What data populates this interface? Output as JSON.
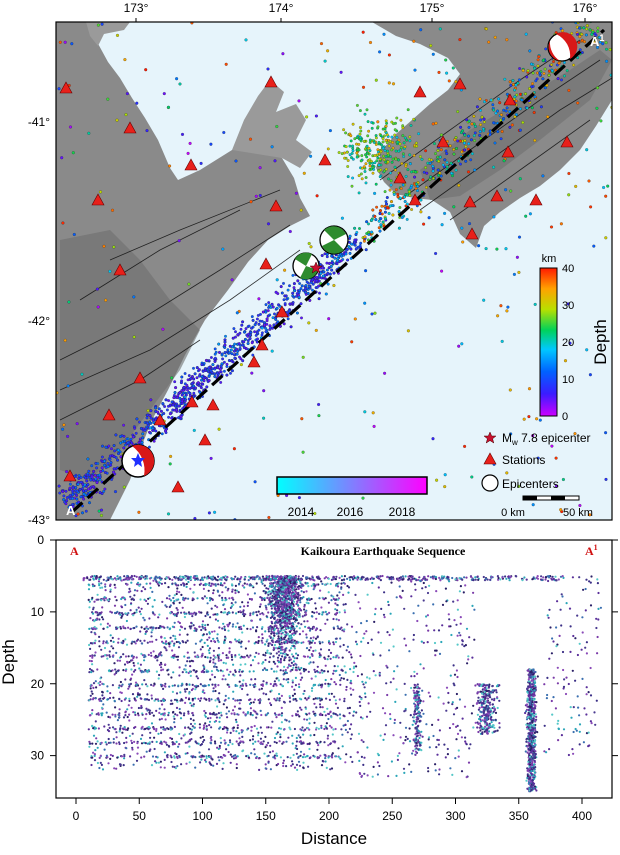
{
  "map": {
    "lon_ticks": [
      "173°",
      "174°",
      "175°",
      "176°"
    ],
    "lat_ticks": [
      "-41°",
      "-42°",
      "-43°"
    ],
    "section_label_start": "A",
    "section_label_end": "A",
    "section_label_end_sup": "1",
    "depth_colorbar": {
      "unit": "km",
      "title": "Depth",
      "ticks": [
        "40",
        "30",
        "20",
        "10",
        "0"
      ],
      "range": [
        0,
        40
      ]
    },
    "legend": {
      "epicenter_label": "M",
      "epicenter_sub": "w",
      "epicenter_rest": " 7.8 epicenter",
      "stations_label": "Stations",
      "epicenters_label": "Epicenters"
    },
    "time_colorbar": {
      "ticks": [
        "2014",
        "2016",
        "2018"
      ],
      "colors": [
        "#00ffff",
        "#ff00ff"
      ]
    },
    "scalebar": {
      "left_label": "0 km",
      "right_label": "50 km"
    },
    "colors": {
      "water": "#e6f4fb",
      "land": "#8c8c8c",
      "station": "#e8201a",
      "profile_line": "#000000"
    }
  },
  "section": {
    "title": "Kaikoura Earthquake Sequence",
    "label_start": "A",
    "label_end": "A",
    "label_end_sup": "1",
    "xlabel": "Distance",
    "ylabel": "Depth",
    "x_ticks": [
      "0",
      "50",
      "100",
      "150",
      "200",
      "250",
      "300",
      "350",
      "400"
    ],
    "y_ticks": [
      "0",
      "10",
      "20",
      "30"
    ],
    "xlim": [
      0,
      420
    ],
    "ylim": [
      0,
      36
    ]
  },
  "chart_data": {
    "type": "scatter",
    "xlabel": "Distance",
    "ylabel": "Depth",
    "title": "Kaikoura Earthquake Sequence",
    "xlim": [
      0,
      420
    ],
    "ylim": [
      36,
      0
    ],
    "x_ticks": [
      0,
      50,
      100,
      150,
      200,
      250,
      300,
      350,
      400
    ],
    "y_ticks": [
      0,
      10,
      20,
      30
    ],
    "series": [
      {
        "x": [
          5,
          10,
          20,
          30,
          45,
          60,
          80,
          95,
          110,
          130,
          150,
          165,
          175,
          180,
          185,
          190,
          195,
          200,
          205,
          215,
          230,
          250,
          270,
          290,
          310,
          320,
          330,
          340,
          350,
          355,
          360,
          362,
          365,
          368,
          370,
          375,
          380,
          390
        ],
        "y": [
          5,
          5,
          12,
          18,
          8,
          22,
          12,
          25,
          10,
          15,
          20,
          8,
          12,
          10,
          14,
          18,
          22,
          10,
          15,
          18,
          12,
          8,
          22,
          25,
          20,
          25,
          22,
          24,
          18,
          25,
          28,
          30,
          33,
          26,
          22,
          30,
          18,
          12
        ]
      }
    ]
  }
}
